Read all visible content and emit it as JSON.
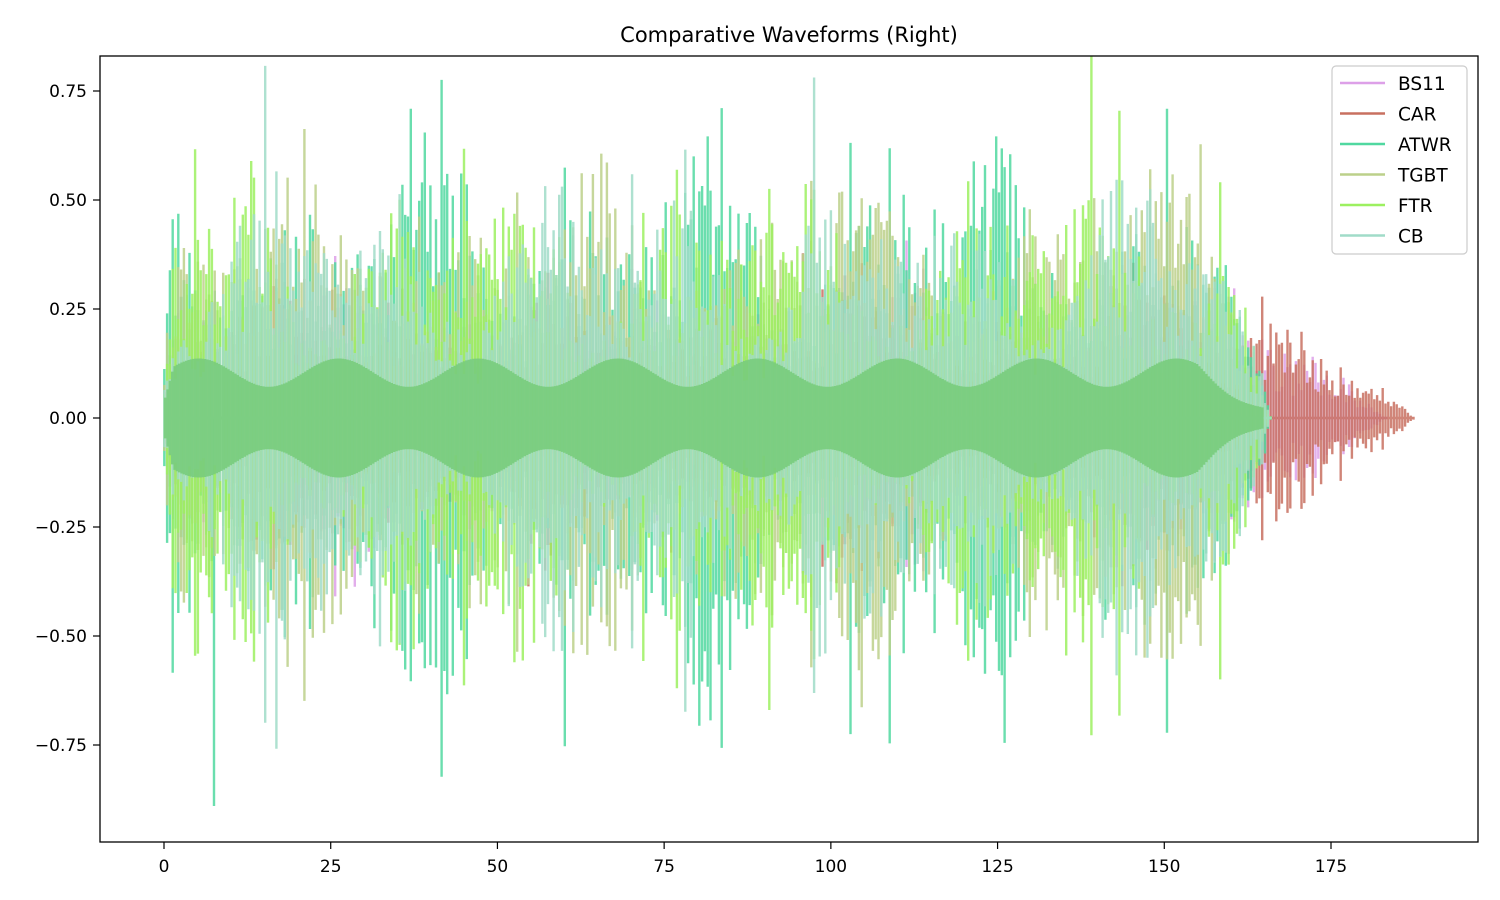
{
  "chart_data": {
    "type": "line",
    "title": "Comparative Waveforms (Right)",
    "xlabel": "",
    "ylabel": "",
    "xlim": [
      -9.5,
      197.5
    ],
    "ylim": [
      -0.97,
      0.83
    ],
    "x_ticks": [
      0,
      25,
      50,
      75,
      100,
      125,
      150,
      175
    ],
    "x_tick_labels": [
      "0",
      "25",
      "50",
      "75",
      "100",
      "125",
      "150",
      "175"
    ],
    "y_ticks": [
      0.75,
      0.5,
      0.25,
      0.0,
      -0.25,
      -0.5,
      -0.75
    ],
    "y_tick_labels": [
      "0.75",
      "0.50",
      "0.25",
      "0.00",
      "−0.25",
      "−0.50",
      "−0.75"
    ],
    "grid": false,
    "legend_position": "upper right",
    "series": [
      {
        "name": "BS11",
        "color": "#dda0e8",
        "duration": 183.5,
        "peak": 0.35,
        "fade_start": 168,
        "seed": 11
      },
      {
        "name": "CAR",
        "color": "#c87060",
        "duration": 187.5,
        "peak": 0.38,
        "fade_start": 170,
        "seed": 23
      },
      {
        "name": "ATWR",
        "color": "#50d8a0",
        "duration": 166,
        "peak": 0.75,
        "fade_start": 158,
        "seed": 37,
        "min": -0.89
      },
      {
        "name": "TGBT",
        "color": "#bcd08a",
        "duration": 166,
        "peak": 0.68,
        "fade_start": 158,
        "seed": 41
      },
      {
        "name": "FTR",
        "color": "#9cf060",
        "duration": 166,
        "peak": 0.68,
        "fade_start": 158,
        "seed": 53
      },
      {
        "name": "CB",
        "color": "#a0dcc8",
        "duration": 166,
        "peak": 0.65,
        "fade_start": 158,
        "seed": 67
      }
    ],
    "annotations": []
  },
  "legend": {
    "items": [
      {
        "label": "BS11",
        "color": "#dda0e8"
      },
      {
        "label": "CAR",
        "color": "#c87060"
      },
      {
        "label": "ATWR",
        "color": "#50d8a0"
      },
      {
        "label": "TGBT",
        "color": "#bcd08a"
      },
      {
        "label": "FTR",
        "color": "#9cf060"
      },
      {
        "label": "CB",
        "color": "#a0dcc8"
      }
    ]
  },
  "colors": {
    "dense_core": "#78cc7c",
    "axis": "#000000",
    "legend_border": "#cccccc"
  }
}
